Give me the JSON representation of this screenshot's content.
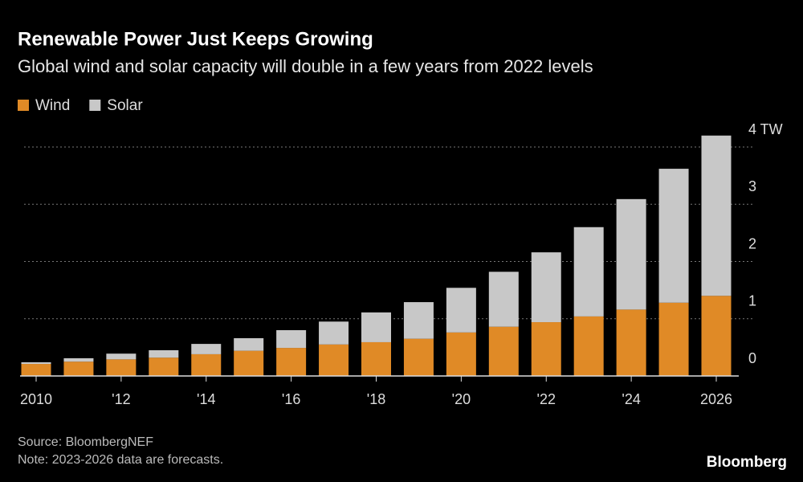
{
  "chart_data": {
    "type": "stacked_bar",
    "title": "Renewable Power Just Keeps Growing",
    "subtitle": "Global wind and solar capacity will double in a few years from 2022 levels",
    "categories": [
      "2010",
      null,
      "'12",
      null,
      "'14",
      null,
      "'16",
      null,
      "'18",
      null,
      "'20",
      null,
      "'22",
      null,
      "'24",
      null,
      "2026"
    ],
    "series": [
      {
        "name": "Wind",
        "color": "#e08a26",
        "values": [
          0.21,
          0.25,
          0.29,
          0.32,
          0.38,
          0.44,
          0.49,
          0.55,
          0.59,
          0.65,
          0.76,
          0.86,
          0.94,
          1.04,
          1.16,
          1.28,
          1.4
        ]
      },
      {
        "name": "Solar",
        "color": "#c8c8c8",
        "values": [
          0.03,
          0.06,
          0.1,
          0.13,
          0.18,
          0.22,
          0.31,
          0.4,
          0.52,
          0.64,
          0.78,
          0.96,
          1.22,
          1.56,
          1.93,
          2.34,
          2.8
        ]
      }
    ],
    "ylim": [
      0,
      4.25
    ],
    "yticks": [
      0,
      1,
      2,
      3,
      {
        "value": 4,
        "label": "4 TW"
      }
    ],
    "grid": true,
    "source": "Source: BloombergNEF",
    "note": "Note: 2023-2026 data are forecasts.",
    "brand": "Bloomberg"
  }
}
